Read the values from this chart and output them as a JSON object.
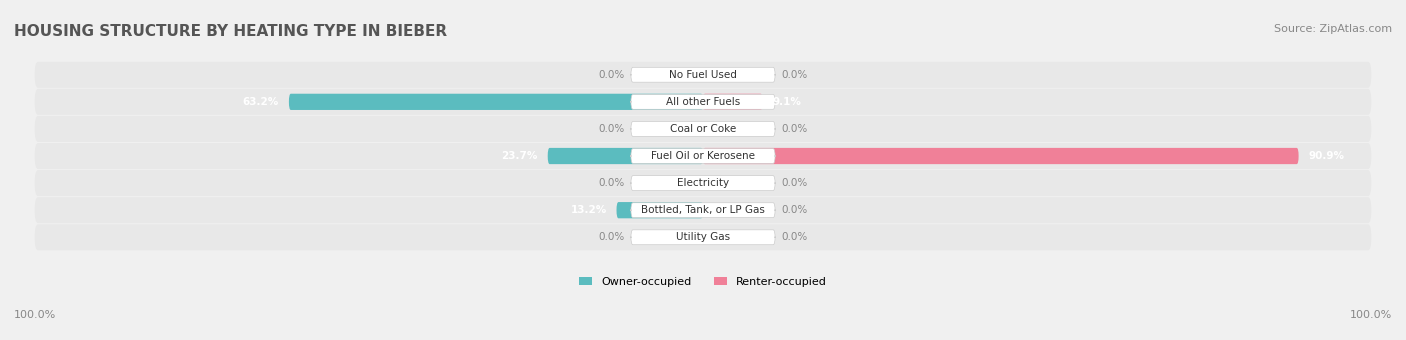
{
  "title": "HOUSING STRUCTURE BY HEATING TYPE IN BIEBER",
  "source": "Source: ZipAtlas.com",
  "categories": [
    "Utility Gas",
    "Bottled, Tank, or LP Gas",
    "Electricity",
    "Fuel Oil or Kerosene",
    "Coal or Coke",
    "All other Fuels",
    "No Fuel Used"
  ],
  "owner_values": [
    0.0,
    13.2,
    0.0,
    23.7,
    0.0,
    63.2,
    0.0
  ],
  "renter_values": [
    0.0,
    0.0,
    0.0,
    90.9,
    0.0,
    9.1,
    0.0
  ],
  "owner_color": "#5bbcbf",
  "renter_color": "#f08098",
  "owner_label": "Owner-occupied",
  "renter_label": "Renter-occupied",
  "background_color": "#f0f0f0",
  "bar_background_color": "#e0e0e0",
  "label_bg_color": "#ffffff",
  "axis_label_left": "100.0%",
  "axis_label_right": "100.0%",
  "max_value": 100.0,
  "title_fontsize": 11,
  "source_fontsize": 8,
  "bar_height": 0.6,
  "bar_row_bg_color": "#e8e8e8"
}
